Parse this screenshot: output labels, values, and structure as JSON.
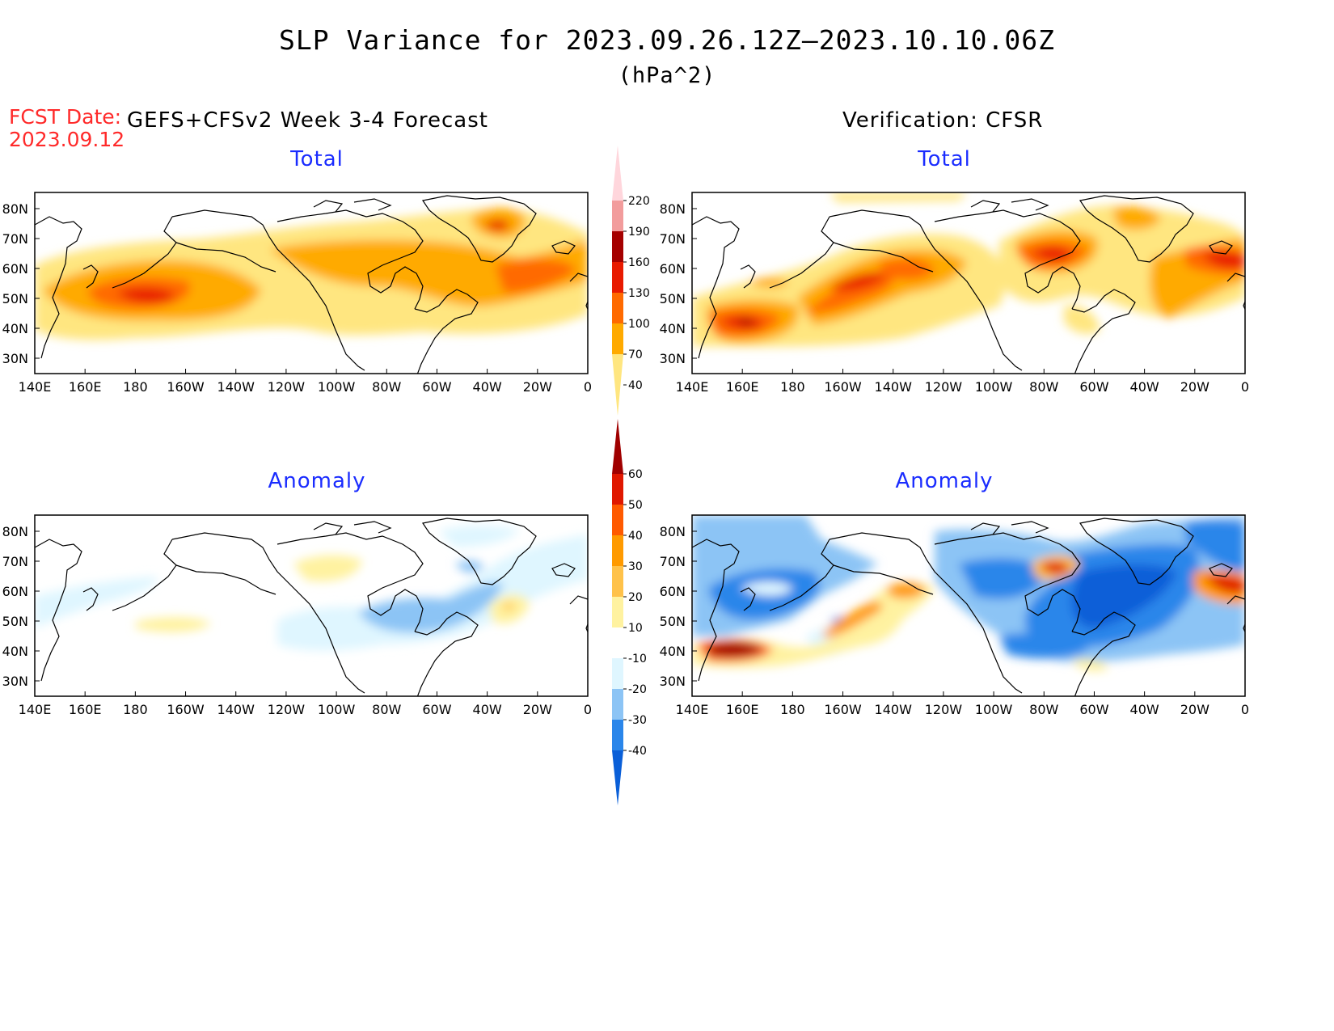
{
  "title": "SLP Variance for 2023.09.26.12Z—2023.10.10.06Z",
  "units": "(hPa^2)",
  "fcst_date_label": "FCST Date:",
  "fcst_date_value": "2023.09.12",
  "forecast_header": "GEFS+CFSv2 Week 3-4 Forecast",
  "verification_header": "Verification: CFSR",
  "panels": {
    "fc_total": "Total",
    "ver_total": "Total",
    "fc_anom": "Anomaly",
    "ver_anom": "Anomaly"
  },
  "lat_labels": [
    "80N",
    "70N",
    "60N",
    "50N",
    "40N",
    "30N"
  ],
  "lon_labels": [
    "140E",
    "160E",
    "180",
    "160W",
    "140W",
    "120W",
    "100W",
    "80W",
    "60W",
    "40W",
    "20W",
    "0"
  ],
  "total_colorbar": {
    "levels": [
      "40",
      "70",
      "100",
      "130",
      "160",
      "190",
      "220"
    ],
    "colors": [
      "#ffe680",
      "#ffaa00",
      "#ff6a00",
      "#e81a00",
      "#a50000",
      "#f29c9c",
      "#ffd6dc"
    ]
  },
  "anomaly_colorbar": {
    "levels": [
      "-40",
      "-30",
      "-20",
      "-10",
      "10",
      "20",
      "30",
      "40",
      "50",
      "60"
    ],
    "colors": [
      "#0a5fd8",
      "#2a86ea",
      "#8cc4f5",
      "#dff6ff",
      "#ffffff",
      "#fff2a0",
      "#ffc24a",
      "#ff9a00",
      "#ff5a00",
      "#e01800",
      "#a00000"
    ]
  },
  "chart_data": {
    "type": "heatmap",
    "x_range": [
      "140E",
      "0"
    ],
    "y_range": [
      "25N",
      "85N"
    ],
    "panels": [
      {
        "name": "GEFS+CFSv2 Week 3-4 Forecast Total",
        "max_region": "North Pacific near 170W 50N"
      },
      {
        "name": "Verification CFSR Total",
        "max_region": "North Pacific 40N 165E, Hudson Bay, NE Atlantic"
      },
      {
        "name": "GEFS+CFSv2 Week 3-4 Forecast Anomaly",
        "range": "-20 to 30"
      },
      {
        "name": "Verification CFSR Anomaly",
        "range": "-40 to 60"
      }
    ]
  }
}
